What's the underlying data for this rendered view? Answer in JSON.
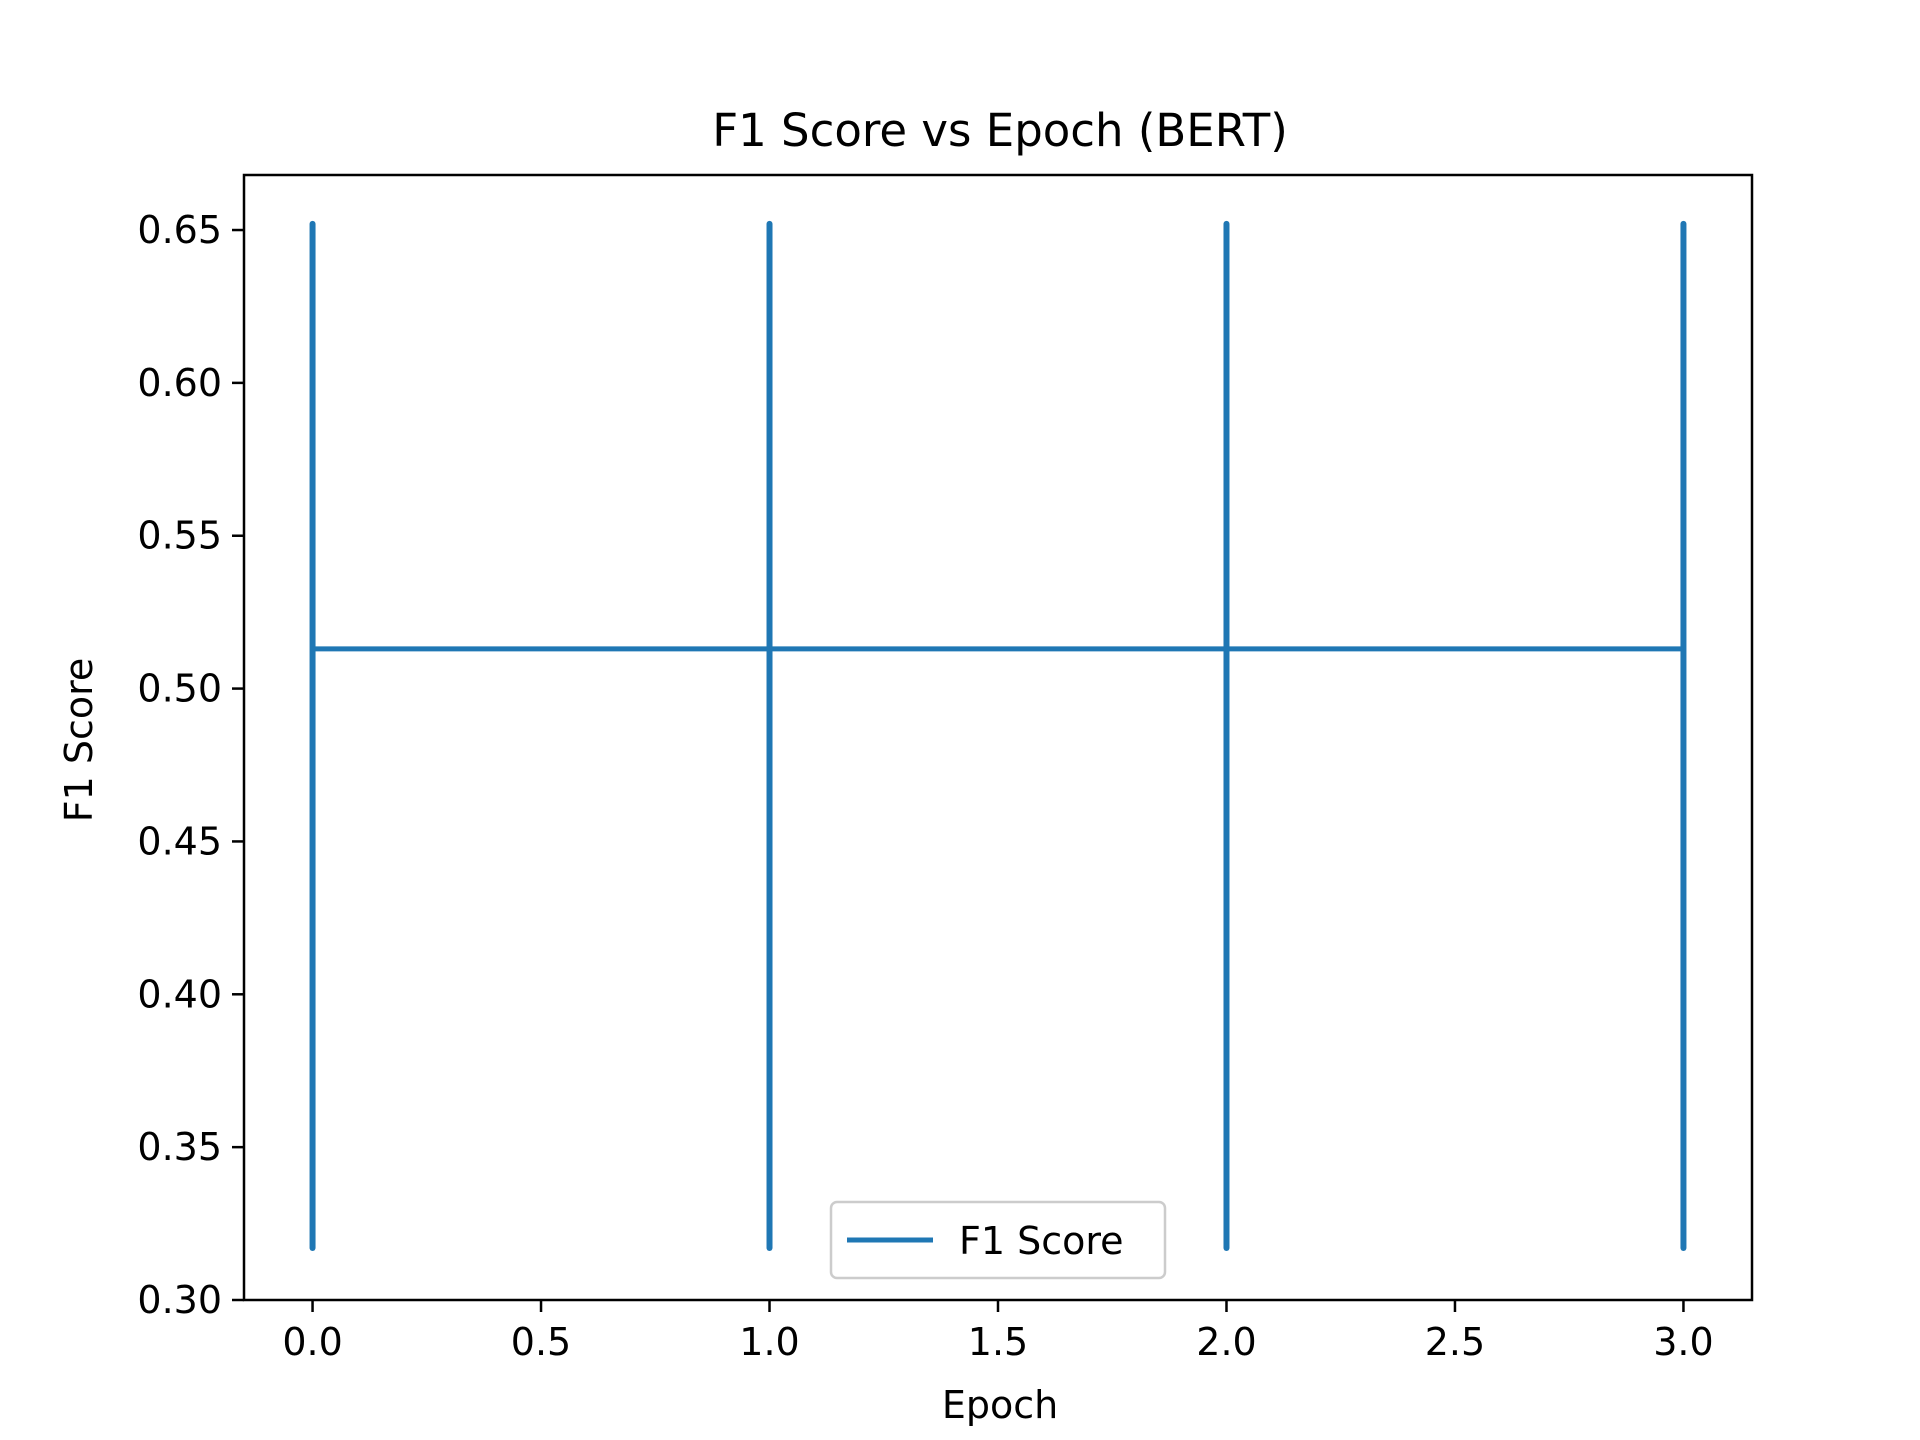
{
  "chart_data": {
    "type": "line",
    "title": "F1 Score vs Epoch (BERT)",
    "xlabel": "Epoch",
    "ylabel": "F1 Score",
    "xlim": [
      -0.15,
      3.15
    ],
    "ylim": [
      0.3,
      0.668
    ],
    "xticks": [
      0.0,
      0.5,
      1.0,
      1.5,
      2.0,
      2.5,
      3.0
    ],
    "xtick_labels": [
      "0.0",
      "0.5",
      "1.0",
      "1.5",
      "2.0",
      "2.5",
      "3.0"
    ],
    "yticks": [
      0.3,
      0.35,
      0.4,
      0.45,
      0.5,
      0.55,
      0.6,
      0.65
    ],
    "ytick_labels": [
      "0.30",
      "0.35",
      "0.40",
      "0.45",
      "0.50",
      "0.55",
      "0.60",
      "0.65"
    ],
    "grid": false,
    "legend_position": "lower-center",
    "series": [
      {
        "name": "F1 Score",
        "color": "#1f77b4",
        "x": [
          0,
          1,
          2,
          3
        ],
        "y": [
          0.513,
          0.513,
          0.513,
          0.513
        ],
        "error_low": [
          0.317,
          0.317,
          0.317,
          0.317
        ],
        "error_high": [
          0.652,
          0.652,
          0.652,
          0.652
        ]
      }
    ]
  }
}
